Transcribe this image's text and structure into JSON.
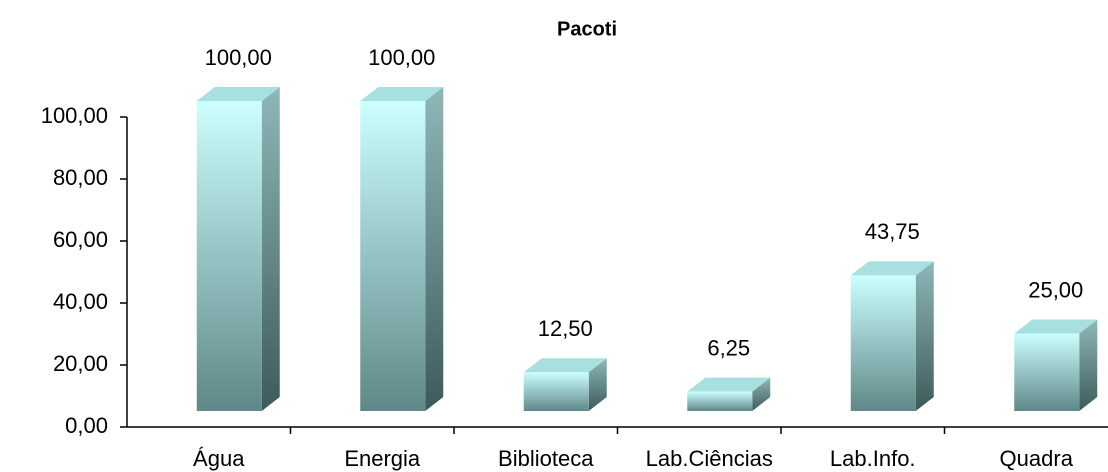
{
  "chart_data": {
    "type": "bar",
    "title": "Pacoti",
    "categories": [
      "Água",
      "Energia",
      "Biblioteca",
      "Lab.Ciências",
      "Lab.Info.",
      "Quadra"
    ],
    "values": [
      100,
      100,
      12.5,
      6.25,
      43.75,
      25
    ],
    "value_labels": [
      "100,00",
      "100,00",
      "12,50",
      "6,25",
      "43,75",
      "25,00"
    ],
    "color": "#a8e0e0",
    "ylim": [
      0,
      100
    ],
    "yticks": [
      {
        "value": 0,
        "label": "0,00"
      },
      {
        "value": 20,
        "label": "20,00"
      },
      {
        "value": 40,
        "label": "40,00"
      },
      {
        "value": 60,
        "label": "60,00"
      },
      {
        "value": 80,
        "label": "80,00"
      },
      {
        "value": 100,
        "label": "100,00"
      }
    ]
  }
}
